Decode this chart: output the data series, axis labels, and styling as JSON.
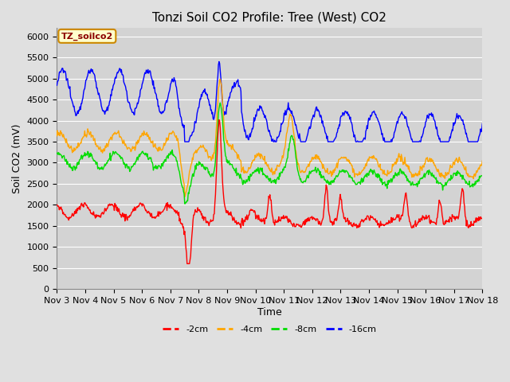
{
  "title": "Tonzi Soil CO2 Profile: Tree (West) CO2",
  "ylabel": "Soil CO2 (mV)",
  "xlabel": "Time",
  "annotation": "TZ_soilco2",
  "ylim": [
    0,
    6200
  ],
  "yticks": [
    0,
    500,
    1000,
    1500,
    2000,
    2500,
    3000,
    3500,
    4000,
    4500,
    5000,
    5500,
    6000
  ],
  "xtick_labels": [
    "Nov 3",
    "Nov 4",
    "Nov 5",
    "Nov 6",
    "Nov 7",
    "Nov 8",
    "Nov 9",
    "Nov 10",
    "Nov 11",
    "Nov 12",
    "Nov 13",
    "Nov 14",
    "Nov 15",
    "Nov 16",
    "Nov 17",
    "Nov 18"
  ],
  "colors": {
    "2cm": "#ff0000",
    "4cm": "#ffa500",
    "8cm": "#00dd00",
    "16cm": "#0000ff"
  },
  "line_width": 1.0,
  "fig_bg_color": "#e0e0e0",
  "plot_bg_color": "#d3d3d3",
  "grid_color": "#ffffff",
  "title_fontsize": 11,
  "label_fontsize": 9,
  "tick_fontsize": 8,
  "annotation_fontsize": 8,
  "legend_fontsize": 8
}
